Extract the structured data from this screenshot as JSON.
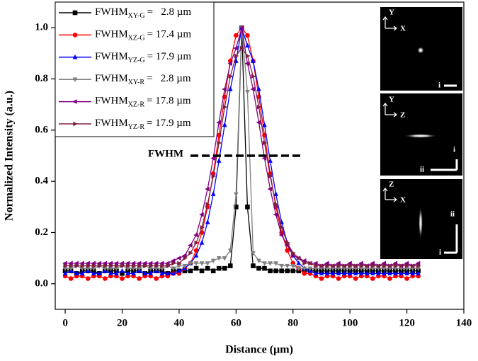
{
  "chart_data": {
    "type": "line",
    "x_label": "Distance (µm)",
    "y_label": "Normalized Intensity (a.u.)",
    "x": [
      0,
      2,
      4,
      6,
      8,
      10,
      12,
      14,
      16,
      18,
      20,
      22,
      24,
      26,
      28,
      30,
      32,
      34,
      36,
      38,
      40,
      42,
      44,
      46,
      48,
      50,
      52,
      54,
      56,
      58,
      60,
      62,
      64,
      66,
      68,
      70,
      72,
      74,
      76,
      78,
      80,
      82,
      84,
      86,
      88,
      90,
      92,
      94,
      96,
      98,
      100,
      102,
      104,
      106,
      108,
      110,
      112,
      114,
      116,
      118,
      120,
      122,
      124
    ],
    "series": [
      {
        "name": "FWHM",
        "subscript": "XY-G",
        "value_text": "=   2.8 µm",
        "color": "#000000",
        "marker": "square",
        "values": [
          0.05,
          0.05,
          0.04,
          0.05,
          0.05,
          0.05,
          0.04,
          0.05,
          0.05,
          0.05,
          0.04,
          0.05,
          0.05,
          0.05,
          0.04,
          0.05,
          0.05,
          0.05,
          0.04,
          0.05,
          0.05,
          0.05,
          0.05,
          0.06,
          0.05,
          0.06,
          0.05,
          0.06,
          0.06,
          0.07,
          0.3,
          1.0,
          0.3,
          0.07,
          0.06,
          0.06,
          0.05,
          0.05,
          0.05,
          0.05,
          0.05,
          0.05,
          0.05,
          0.05,
          0.05,
          0.05,
          0.05,
          0.05,
          0.05,
          0.05,
          0.05,
          0.05,
          0.05,
          0.05,
          0.05,
          0.05,
          0.05,
          0.05,
          0.05,
          0.05,
          0.05,
          0.05,
          0.05
        ]
      },
      {
        "name": "FWHM",
        "subscript": "XZ-G",
        "value_text": "= 17.4 µm",
        "color": "#ff0000",
        "marker": "circle",
        "values": [
          0.03,
          0.02,
          0.03,
          0.03,
          0.02,
          0.03,
          0.03,
          0.02,
          0.03,
          0.03,
          0.02,
          0.03,
          0.03,
          0.02,
          0.03,
          0.03,
          0.02,
          0.03,
          0.03,
          0.04,
          0.04,
          0.06,
          0.08,
          0.13,
          0.2,
          0.3,
          0.43,
          0.58,
          0.73,
          0.87,
          0.97,
          1.0,
          0.97,
          0.87,
          0.73,
          0.58,
          0.43,
          0.3,
          0.2,
          0.13,
          0.08,
          0.06,
          0.04,
          0.04,
          0.03,
          0.02,
          0.03,
          0.03,
          0.02,
          0.03,
          0.03,
          0.02,
          0.03,
          0.03,
          0.02,
          0.03,
          0.03,
          0.02,
          0.03,
          0.03,
          0.02,
          0.03,
          0.03
        ]
      },
      {
        "name": "FWHM",
        "subscript": "YZ-G",
        "value_text": "= 17.9 µm",
        "color": "#0000ff",
        "marker": "triangle-up",
        "values": [
          0.04,
          0.05,
          0.04,
          0.04,
          0.05,
          0.04,
          0.04,
          0.05,
          0.04,
          0.04,
          0.05,
          0.04,
          0.04,
          0.05,
          0.04,
          0.04,
          0.05,
          0.04,
          0.04,
          0.04,
          0.05,
          0.06,
          0.08,
          0.11,
          0.16,
          0.24,
          0.35,
          0.48,
          0.62,
          0.76,
          0.87,
          1.0,
          0.93,
          0.87,
          0.76,
          0.62,
          0.48,
          0.35,
          0.24,
          0.16,
          0.11,
          0.08,
          0.06,
          0.05,
          0.04,
          0.04,
          0.04,
          0.04,
          0.04,
          0.04,
          0.04,
          0.04,
          0.04,
          0.04,
          0.04,
          0.04,
          0.04,
          0.04,
          0.04,
          0.04,
          0.04,
          0.04,
          0.04
        ]
      },
      {
        "name": "FWHM",
        "subscript": "XY-R",
        "value_text": "=   2.8 µm",
        "color": "#808080",
        "marker": "triangle-down",
        "values": [
          0.06,
          0.06,
          0.07,
          0.06,
          0.06,
          0.06,
          0.07,
          0.06,
          0.06,
          0.06,
          0.07,
          0.06,
          0.06,
          0.06,
          0.07,
          0.06,
          0.06,
          0.06,
          0.07,
          0.06,
          0.07,
          0.07,
          0.08,
          0.08,
          0.08,
          0.08,
          0.09,
          0.1,
          0.1,
          0.13,
          0.35,
          1.0,
          0.75,
          0.12,
          0.09,
          0.08,
          0.08,
          0.08,
          0.07,
          0.07,
          0.07,
          0.06,
          0.06,
          0.06,
          0.06,
          0.06,
          0.06,
          0.06,
          0.06,
          0.06,
          0.06,
          0.06,
          0.06,
          0.06,
          0.06,
          0.06,
          0.06,
          0.06,
          0.06,
          0.06,
          0.06,
          0.06,
          0.06
        ]
      },
      {
        "name": "FWHM",
        "subscript": "XZ-R",
        "value_text": "= 17.8 µm",
        "color": "#800080",
        "marker": "triangle-left",
        "values": [
          0.08,
          0.08,
          0.08,
          0.08,
          0.08,
          0.08,
          0.08,
          0.08,
          0.08,
          0.08,
          0.08,
          0.08,
          0.08,
          0.08,
          0.08,
          0.08,
          0.08,
          0.08,
          0.08,
          0.09,
          0.1,
          0.11,
          0.15,
          0.19,
          0.27,
          0.37,
          0.49,
          0.63,
          0.76,
          0.86,
          0.92,
          1.0,
          0.86,
          0.76,
          0.63,
          0.49,
          0.37,
          0.27,
          0.19,
          0.15,
          0.11,
          0.1,
          0.09,
          0.08,
          0.08,
          0.07,
          0.08,
          0.07,
          0.08,
          0.07,
          0.08,
          0.07,
          0.08,
          0.07,
          0.08,
          0.07,
          0.08,
          0.07,
          0.08,
          0.07,
          0.08,
          0.07,
          0.08
        ]
      },
      {
        "name": "FWHM",
        "subscript": "YZ-R",
        "value_text": "= 17.9 µm",
        "color": "#802040",
        "marker": "triangle-right",
        "values": [
          0.07,
          0.07,
          0.07,
          0.07,
          0.07,
          0.07,
          0.07,
          0.07,
          0.07,
          0.07,
          0.07,
          0.07,
          0.07,
          0.07,
          0.07,
          0.07,
          0.07,
          0.07,
          0.07,
          0.08,
          0.08,
          0.1,
          0.12,
          0.16,
          0.22,
          0.31,
          0.42,
          0.55,
          0.69,
          0.81,
          0.89,
          0.92,
          0.89,
          0.81,
          0.69,
          0.55,
          0.42,
          0.31,
          0.22,
          0.16,
          0.12,
          0.1,
          0.08,
          0.08,
          0.07,
          0.07,
          0.07,
          0.07,
          0.07,
          0.07,
          0.07,
          0.07,
          0.07,
          0.07,
          0.07,
          0.07,
          0.07,
          0.07,
          0.07,
          0.07,
          0.07,
          0.07,
          0.07
        ]
      }
    ],
    "xlim": [
      -3.5,
      140
    ],
    "ylim": [
      -0.1,
      1.1
    ],
    "xticks": [
      0,
      20,
      40,
      60,
      80,
      100,
      120,
      140
    ],
    "yticks": [
      {
        "value": 0,
        "label": "0.0"
      },
      0.2,
      0.4,
      0.6,
      {
        "value": 1,
        "label": "1.0"
      },
      0.8
    ],
    "legend": "upper left",
    "annotation": {
      "text": "FWHM",
      "x": [
        44,
        83
      ],
      "y": 0.5
    }
  },
  "insets": [
    {
      "axes": [
        "Y",
        "X"
      ],
      "scale_labels": [
        "i"
      ]
    },
    {
      "axes": [
        "Y",
        "Z"
      ],
      "scale_labels": [
        "i",
        "ii"
      ]
    },
    {
      "axes": [
        "Z",
        "X"
      ],
      "scale_labels": [
        "ii",
        "i"
      ]
    }
  ]
}
